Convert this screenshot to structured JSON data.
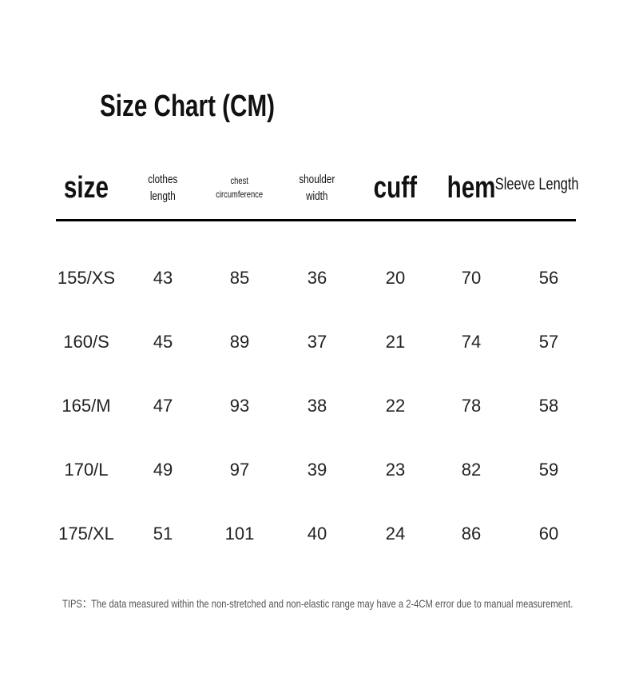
{
  "title": "Size Chart (CM)",
  "headers": [
    "size",
    "clothes\nlength",
    "chest\ncircumference",
    "shoulder\nwidth",
    "cuff",
    "hem",
    "Sleeve Length"
  ],
  "rows": [
    [
      "155/XS",
      "43",
      "85",
      "36",
      "20",
      "70",
      "56"
    ],
    [
      "160/S",
      "45",
      "89",
      "37",
      "21",
      "74",
      "57"
    ],
    [
      "165/M",
      "47",
      "93",
      "38",
      "22",
      "78",
      "58"
    ],
    [
      "170/L",
      "49",
      "97",
      "39",
      "23",
      "82",
      "59"
    ],
    [
      "175/XL",
      "51",
      "101",
      "40",
      "24",
      "86",
      "60"
    ]
  ],
  "tips": "TIPS：The data measured within the non-stretched and non-elastic range may have a 2-4CM error due to manual measurement."
}
